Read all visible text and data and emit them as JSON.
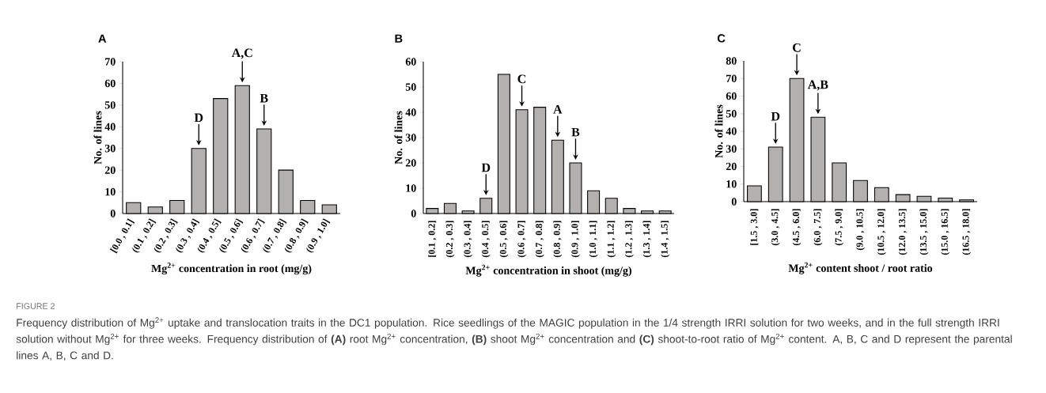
{
  "chart_data": [
    {
      "type": "bar",
      "title": "A",
      "xlabel": "Mg$^{2+}$ concentration in root (mg/g)",
      "ylabel": "No. of lines",
      "categories": [
        "[0.0 , 0.1]",
        "(0.1 , 0.2]",
        "(0.2 , 0.3]",
        "(0.3 , 0.4]",
        "(0.4 , 0.5]",
        "(0.5 , 0.6]",
        "(0.6 , 0.7]",
        "(0.7 , 0.8]",
        "(0.8 , 0.9]",
        "(0.9 , 1.0]"
      ],
      "values": [
        5,
        3,
        6,
        30,
        53,
        59,
        39,
        20,
        6,
        4
      ],
      "color": "#b3b0b0",
      "ylim": [
        0,
        70
      ],
      "yticks": [
        0,
        10,
        20,
        30,
        40,
        50,
        60,
        70
      ],
      "grid": false,
      "annotations": [
        {
          "text": "D",
          "x": "(0.3 , 0.4]",
          "y": 30
        },
        {
          "text": "A,C",
          "x": "(0.5 , 0.6]",
          "y": 59
        },
        {
          "text": "B",
          "x": "(0.6 , 0.7]",
          "y": 39
        },
        "FIGURE 2",
        "Frequency distribution of Mg$^{2+}$ uptake and translocation traits in the DC1 population. Rice seedlings of the MAGIC population in the 1/4 strength IRRI solution for two weeks, and in the full strength IRRI solution without Mg$^{2+}$ for three weeks. Frequency distribution of **(A)** root Mg$^{2+}$ concentration, **(B)** shoot Mg$^{2+}$ concentration and **(C)** shoot-to-root ratio of Mg$^{2+}$ content. A, B, C and D represent the parental lines A, B, C and D."
      ]
    },
    {
      "type": "bar",
      "title": "B",
      "xlabel": "Mg$^{2+}$ concentration in shoot (mg/g)",
      "ylabel": "No. of lines",
      "categories": [
        "[0.1 , 0.2]",
        "(0.2 , 0.3]",
        "(0.3 , 0.4]",
        "(0.4 , 0.5]",
        "(0.5 , 0.6]",
        "(0.6 , 0.7]",
        "(0.7 , 0.8]",
        "(0.8 , 0.9]",
        "(0.9 , 1.0]",
        "(1.0 , 1.1]",
        "(1.1 , 1.2]",
        "(1.2 , 1.3]",
        "(1.3 , 1.4]",
        "(1.4 , 1.5]"
      ],
      "values": [
        2,
        4,
        1,
        6,
        55,
        41,
        42,
        29,
        20,
        9,
        6,
        2,
        1,
        1
      ],
      "color": "#b3b0b0",
      "ylim": [
        0,
        60
      ],
      "yticks": [
        0,
        10,
        20,
        30,
        40,
        50,
        60
      ],
      "grid": false,
      "annotations": [
        {
          "text": "D",
          "x": "(0.4 , 0.5]",
          "y": 6
        },
        {
          "text": "C",
          "x": "(0.6 , 0.7]",
          "y": 41
        },
        {
          "text": "A",
          "x": "(0.8 , 0.9]",
          "y": 29
        },
        {
          "text": "B",
          "x": "(0.9 , 1.0]",
          "y": 20
        }
      ]
    },
    {
      "type": "bar",
      "title": "C",
      "xlabel": "Mg$^{2+}$ content shoot / root ratio",
      "ylabel": "No. of lines",
      "categories": [
        "[1.5 , 3.0]",
        "(3.0 , 4.5]",
        "(4.5 , 6.0]",
        "(6.0 , 7.5]",
        "(7.5 , 9.0]",
        "(9.0 , 10.5]",
        "(10.5 , 12.0]",
        "(12.0 , 13.5]",
        "(13.5 , 15.0]",
        "(15.0 , 16.5]",
        "(16.5 , 18.0]"
      ],
      "values": [
        9,
        31,
        70,
        48,
        22,
        12,
        8,
        4,
        3,
        2,
        1
      ],
      "color": "#b3b0b0",
      "ylim": [
        0,
        80
      ],
      "yticks": [
        0,
        10,
        20,
        30,
        40,
        50,
        60,
        70,
        80
      ],
      "grid": false,
      "annotations": [
        {
          "text": "D",
          "x": "(3.0 , 4.5]",
          "y": 31
        },
        {
          "text": "C",
          "x": "(4.5 , 6.0]",
          "y": 70
        },
        {
          "text": "A,B",
          "x": "(6.0 , 7.5]",
          "y": 48
        }
      ]
    }
  ]
}
